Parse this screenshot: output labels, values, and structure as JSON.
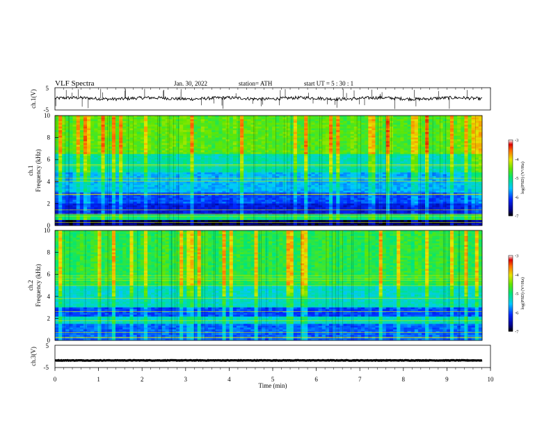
{
  "header": {
    "title": "VLF  Spectra",
    "date": "Jan. 30, 2022",
    "station": "station= ATH",
    "start": "start  UT  =    5  : 30 : 1"
  },
  "chart_data": [
    {
      "type": "line",
      "name": "ch1-waveform",
      "ylabel": "ch.1(V)",
      "ylim": [
        -5,
        5
      ],
      "yticks": [
        "5",
        "-5"
      ],
      "xlim": [
        0,
        10
      ],
      "approx_level": 0.2
    },
    {
      "type": "heatmap",
      "name": "ch1-spectrogram",
      "ylabel": "ch.1\nFrequency (kHz)",
      "ylabel_lines": [
        "ch.1",
        "Frequency (kHz)"
      ],
      "ylim": [
        0,
        10
      ],
      "yticks": [
        "0",
        "2",
        "4",
        "6",
        "8",
        "10"
      ],
      "xlim": [
        0,
        10
      ],
      "colorbar": {
        "label": "log(PSD) (V²/Hz)",
        "ticks": [
          "-3",
          "-4",
          "-5",
          "-6",
          "-7"
        ],
        "range": [
          -7,
          -3
        ]
      },
      "bands_kHz": [
        {
          "from": 0.0,
          "to": 0.5,
          "level": -6.8
        },
        {
          "from": 0.5,
          "to": 1.0,
          "level": -5.0
        },
        {
          "from": 1.0,
          "to": 2.0,
          "level": -6.3
        },
        {
          "from": 2.0,
          "to": 3.0,
          "level": -6.0
        },
        {
          "from": 3.0,
          "to": 4.8,
          "level": -5.6
        },
        {
          "from": 4.8,
          "to": 6.5,
          "level": -5.2
        },
        {
          "from": 6.5,
          "to": 10.0,
          "level": -4.6
        }
      ]
    },
    {
      "type": "heatmap",
      "name": "ch2-spectrogram",
      "ylabel": "ch.2\nFrequency (kHz)",
      "ylabel_lines": [
        "ch.2",
        "Frequency (kHz)"
      ],
      "ylim": [
        0,
        10
      ],
      "yticks": [
        "0",
        "2",
        "4",
        "6",
        "8",
        "10"
      ],
      "xlim": [
        0,
        10
      ],
      "colorbar": {
        "label": "log(PSD) (V²/Hz)",
        "ticks": [
          "-3",
          "-4",
          "-5",
          "-6",
          "-7"
        ],
        "range": [
          -7,
          -3
        ]
      },
      "bands_kHz": [
        {
          "from": 0.0,
          "to": 1.5,
          "level": -5.9
        },
        {
          "from": 1.5,
          "to": 2.2,
          "level": -5.3
        },
        {
          "from": 2.2,
          "to": 3.0,
          "level": -6.0
        },
        {
          "from": 3.0,
          "to": 5.0,
          "level": -5.3
        },
        {
          "from": 5.0,
          "to": 10.0,
          "level": -4.8
        }
      ]
    },
    {
      "type": "line",
      "name": "ch3-waveform",
      "ylabel": "ch.3(V)",
      "ylim": [
        -5,
        5
      ],
      "yticks": [
        "5",
        "-5"
      ],
      "xlim": [
        0,
        10
      ],
      "xlabel": "Time  (min)",
      "xticks": [
        "0",
        "1",
        "2",
        "3",
        "4",
        "5",
        "6",
        "7",
        "8",
        "9",
        "10"
      ],
      "approx_level": -1.8
    }
  ]
}
